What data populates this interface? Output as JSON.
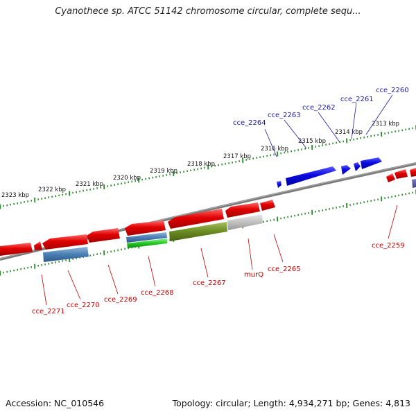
{
  "title": "Cyanothece sp. ATCC 51142 chromosome circular, complete sequ...",
  "footer": {
    "accession": "Accession: NC_010546",
    "summary": "Topology: circular; Length: 4,934,271 bp; Genes: 4,813"
  },
  "tick_labels": [
    "2313 kbp",
    "2314 kbp",
    "2315 kbp",
    "2316 kbp",
    "2317 kbp",
    "2318 kbp",
    "2319 kbp",
    "2320 kbp",
    "2321 kbp",
    "2322 kbp",
    "2323 kbp"
  ],
  "top_labels": [
    "cce_2260",
    "cce_2261",
    "cce_2262",
    "cce_2263",
    "cce_2264"
  ],
  "bottom_labels": [
    "cce_2259",
    "cce_2265",
    "murQ",
    "cce_2267",
    "cce_2268",
    "cce_2269",
    "cce_2270",
    "cce_2271"
  ],
  "colors": {
    "forward_gene": "#1010e0",
    "reverse_gene": "#e00000",
    "forward_label": "#1a1aa0",
    "reverse_label": "#c00000",
    "tick": "#2a8a2a",
    "backbone": "#808080"
  }
}
